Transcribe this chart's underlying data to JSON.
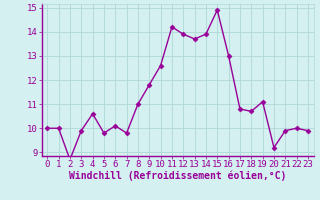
{
  "x": [
    0,
    1,
    2,
    3,
    4,
    5,
    6,
    7,
    8,
    9,
    10,
    11,
    12,
    13,
    14,
    15,
    16,
    17,
    18,
    19,
    20,
    21,
    22,
    23
  ],
  "y": [
    10.0,
    10.0,
    8.7,
    9.9,
    10.6,
    9.8,
    10.1,
    9.8,
    11.0,
    11.8,
    12.6,
    14.2,
    13.9,
    13.7,
    13.9,
    14.9,
    13.0,
    10.8,
    10.7,
    11.1,
    9.2,
    9.9,
    10.0,
    9.9
  ],
  "line_color": "#990099",
  "marker": "D",
  "marker_size": 2.5,
  "bg_color": "#d4f0f0",
  "grid_color": "#b0d8d8",
  "xlabel": "Windchill (Refroidissement éolien,°C)",
  "ylim": [
    9,
    15
  ],
  "xlim": [
    0,
    23
  ],
  "yticks": [
    9,
    10,
    11,
    12,
    13,
    14,
    15
  ],
  "xticks": [
    0,
    1,
    2,
    3,
    4,
    5,
    6,
    7,
    8,
    9,
    10,
    11,
    12,
    13,
    14,
    15,
    16,
    17,
    18,
    19,
    20,
    21,
    22,
    23
  ],
  "xlabel_fontsize": 7,
  "tick_fontsize": 6.5,
  "line_width": 1.0,
  "label_color": "#990099",
  "spine_color": "#990099"
}
